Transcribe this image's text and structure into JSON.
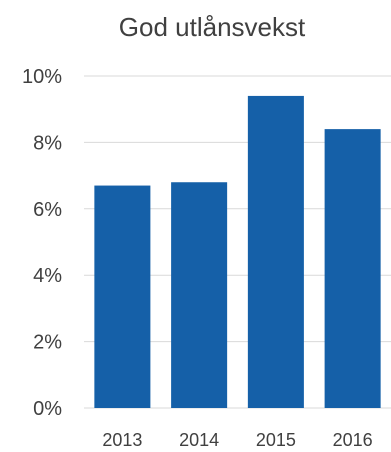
{
  "chart_data": {
    "type": "bar",
    "title": "God utlånsvekst",
    "categories": [
      "2013",
      "2014",
      "2015",
      "2016"
    ],
    "values": [
      6.7,
      6.8,
      9.4,
      8.4
    ],
    "unit": "%",
    "ylim": [
      0,
      10
    ],
    "yticks": [
      "0%",
      "2%",
      "4%",
      "6%",
      "8%",
      "10%"
    ],
    "ytick_values": [
      0,
      2,
      4,
      6,
      8,
      10
    ],
    "grid": true,
    "legend": "none",
    "colors": {
      "bar": "#1560A8",
      "grid": "#D9D9D9",
      "text": "#404040"
    }
  }
}
